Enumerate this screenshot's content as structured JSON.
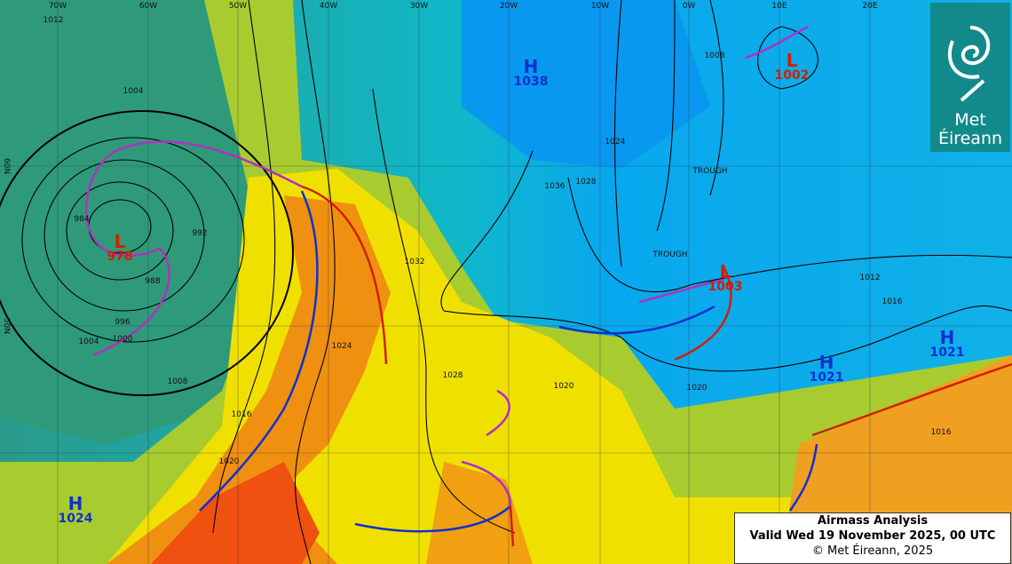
{
  "legend": {
    "title": "Airmass Analysis",
    "valid": "Valid Wed 19 November 2025, 00 UTC",
    "copyright": "© Met Éireann, 2025"
  },
  "logo": {
    "line1": "Met",
    "line2": "Éireann"
  },
  "longitude_labels": [
    "70W",
    "60W",
    "50W",
    "40W",
    "30W",
    "20W",
    "10W",
    "0W",
    "10E",
    "20E"
  ],
  "latitude_labels": [
    "60N",
    "50N"
  ],
  "pressure_centres": [
    {
      "type": "H",
      "value": "1038"
    },
    {
      "type": "L",
      "value": "1002"
    },
    {
      "type": "L",
      "value": "978"
    },
    {
      "type": "L",
      "value": "1003"
    },
    {
      "type": "H",
      "value": "1021"
    },
    {
      "type": "H",
      "value": "1021"
    },
    {
      "type": "H",
      "value": "1024"
    }
  ],
  "isobar_labels": [
    "1012",
    "1004",
    "992",
    "984",
    "988",
    "996",
    "1000",
    "1004",
    "1008",
    "1016",
    "1020",
    "1024",
    "1028",
    "1032",
    "1036",
    "1028",
    "1024",
    "1020",
    "1016",
    "1012",
    "1008",
    "1016",
    "1020"
  ],
  "trough_labels": [
    "TROUGH",
    "TROUGH"
  ],
  "colors": {
    "warm_front": "#d02000",
    "cold_front": "#1030d0",
    "occluded_front": "#b030c0",
    "high": "#1030d0",
    "low": "#d02000",
    "cold_air": "#00aaee",
    "warm_air": "#f07000",
    "mid_air": "#f0e000"
  }
}
